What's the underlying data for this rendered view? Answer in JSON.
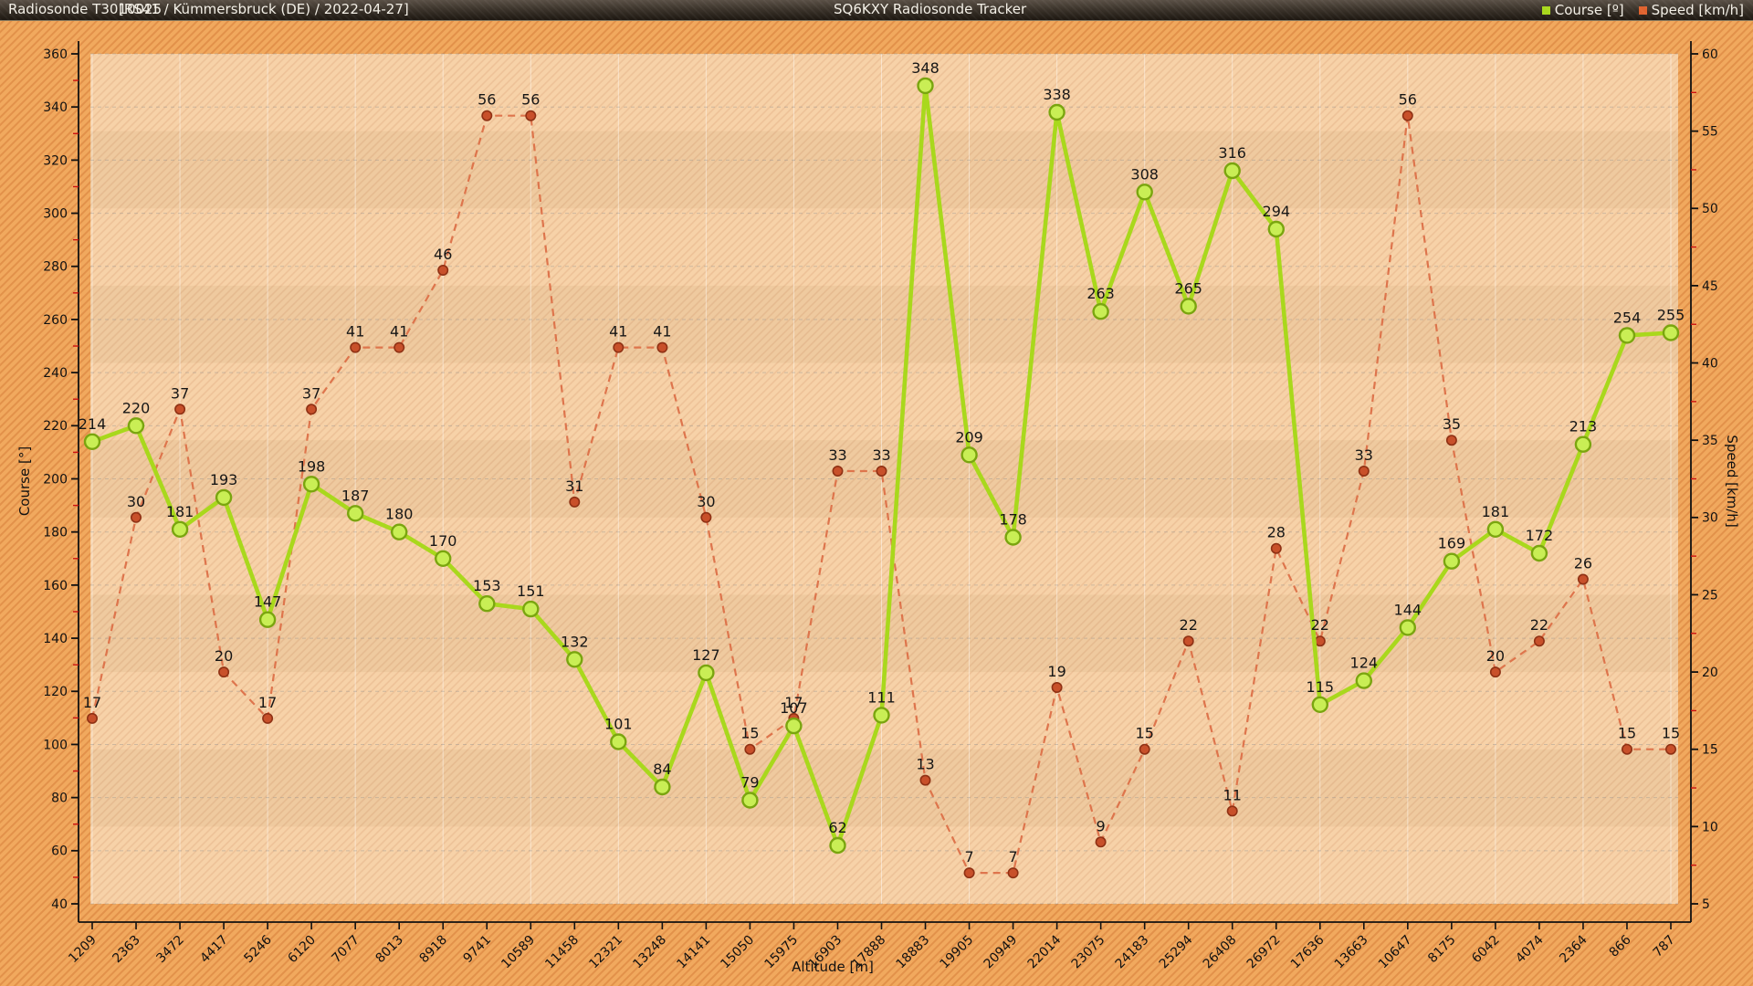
{
  "title_bar": {
    "device": "Radiosonde T3010025",
    "info": "[RS41 / Kümmersbruck (DE) / 2022-04-27]",
    "app": "SQ6KXY Radiosonde Tracker",
    "legend": [
      {
        "label": "Course [º]",
        "color": "#a9d81c"
      },
      {
        "label": "Speed [km/h]",
        "color": "#e0622e"
      }
    ]
  },
  "chart_data": {
    "type": "line",
    "xlabel": "Altitude [m]",
    "x": [
      "1209",
      "2363",
      "3472",
      "4417",
      "5246",
      "6120",
      "7077",
      "8013",
      "8918",
      "9741",
      "10589",
      "11458",
      "12321",
      "13248",
      "14141",
      "15050",
      "15975",
      "16903",
      "17888",
      "18883",
      "19905",
      "20949",
      "22014",
      "23075",
      "24183",
      "25294",
      "26408",
      "26972",
      "17636",
      "13663",
      "10647",
      "8175",
      "6042",
      "4074",
      "2364",
      "866",
      "787"
    ],
    "series": [
      {
        "name": "Course [°]",
        "axis": "left",
        "style": "solid",
        "color": "#a9d81c",
        "marker_fill": "#c9ee55",
        "marker_stroke": "#7aa50f",
        "values": [
          214,
          220,
          181,
          193,
          147,
          198,
          187,
          180,
          170,
          153,
          151,
          132,
          101,
          84,
          127,
          79,
          107,
          62,
          111,
          348,
          209,
          178,
          338,
          263,
          308,
          265,
          316,
          294,
          115,
          124,
          144,
          169,
          181,
          172,
          213,
          254,
          255
        ]
      },
      {
        "name": "Speed [km/h]",
        "axis": "right",
        "style": "dashed",
        "color": "#dc7048",
        "marker_fill": "#c8502a",
        "marker_stroke": "#8f3114",
        "values": [
          17,
          30,
          37,
          20,
          17,
          37,
          41,
          41,
          46,
          56,
          56,
          31,
          41,
          41,
          30,
          15,
          17,
          33,
          33,
          13,
          7,
          7,
          19,
          9,
          15,
          22,
          11,
          28,
          22,
          33,
          56,
          35,
          20,
          22,
          26,
          15,
          15
        ]
      }
    ],
    "left_axis": {
      "label": "Course [°]",
      "min": 40,
      "max": 360,
      "step": 20,
      "minor_color": "#cc1111"
    },
    "right_axis": {
      "label": "Speed [km/h]",
      "min": 5,
      "max": 60,
      "step": 5,
      "minor_color": "#cc1111"
    },
    "grid": true,
    "point_labels": true,
    "legend_position": "title-bar-right",
    "plot_bg": "#f7d2a8",
    "margin_bg": "#f1a95e"
  }
}
